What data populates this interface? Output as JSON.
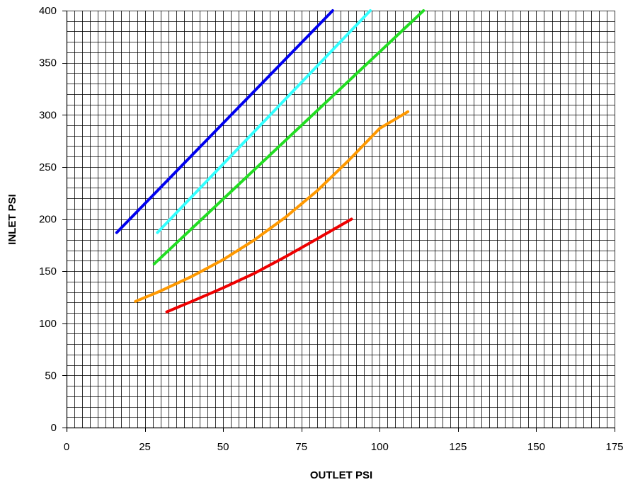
{
  "chart_data": {
    "type": "line",
    "xlabel": "OUTLET PSI",
    "ylabel": "INLET PSI",
    "xlim": [
      0,
      175
    ],
    "ylim": [
      0,
      400
    ],
    "x_ticks": [
      0,
      25,
      50,
      75,
      100,
      125,
      150,
      175
    ],
    "y_ticks": [
      0,
      50,
      100,
      150,
      200,
      250,
      300,
      350,
      400
    ],
    "minor_x_step": 2.5,
    "minor_y_step": 10,
    "grid": true,
    "legend": "none",
    "series": [
      {
        "color": "#0000ee",
        "x": [
          16,
          85
        ],
        "y": [
          187,
          400
        ]
      },
      {
        "color": "#33ffff",
        "x": [
          29,
          97
        ],
        "y": [
          187,
          400
        ]
      },
      {
        "color": "#22dd22",
        "x": [
          28,
          114
        ],
        "y": [
          157,
          400
        ]
      },
      {
        "color": "#ff9900",
        "x": [
          22,
          30,
          40,
          50,
          60,
          70,
          80,
          90,
          100,
          109
        ],
        "y": [
          121,
          131,
          145,
          161,
          180,
          202,
          227,
          256,
          287,
          303
        ]
      },
      {
        "color": "#ee0000",
        "x": [
          32,
          40,
          50,
          60,
          70,
          80,
          91
        ],
        "y": [
          111,
          121,
          134,
          148,
          164,
          181,
          200
        ]
      }
    ]
  }
}
